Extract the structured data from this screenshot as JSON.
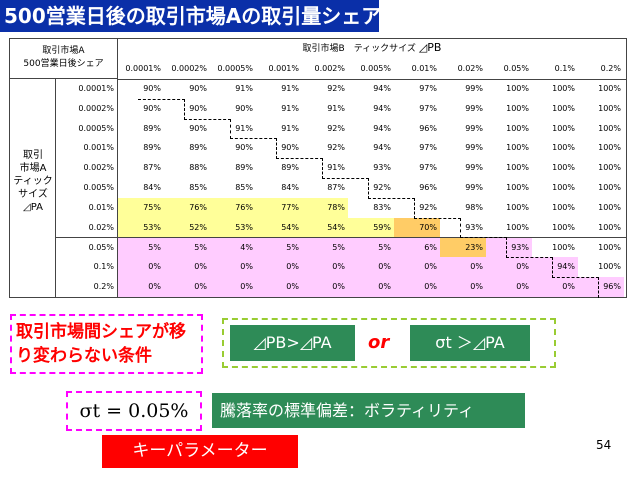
{
  "title": "500営業日後の取引市場Aの取引量シェア",
  "table": {
    "corner_line1": "取引市場A",
    "corner_line2": "500営業日後シェア",
    "top_header": "取引市場B　ティックサイズ",
    "top_header_symbol": "◿PB",
    "row_label_lines": [
      "取引",
      "市場A",
      "ティック",
      "サイズ",
      "◿PA"
    ],
    "columns": [
      "0.0001%",
      "0.0002%",
      "0.0005%",
      "0.001%",
      "0.002%",
      "0.005%",
      "0.01%",
      "0.02%",
      "0.05%",
      "0.1%",
      "0.2%"
    ],
    "rows": [
      {
        "label": "0.0001%",
        "values": [
          "90%",
          "90%",
          "91%",
          "91%",
          "92%",
          "94%",
          "97%",
          "99%",
          "100%",
          "100%",
          "100%"
        ]
      },
      {
        "label": "0.0002%",
        "values": [
          "90%",
          "90%",
          "90%",
          "91%",
          "91%",
          "94%",
          "97%",
          "99%",
          "100%",
          "100%",
          "100%"
        ]
      },
      {
        "label": "0.0005%",
        "values": [
          "89%",
          "90%",
          "91%",
          "91%",
          "92%",
          "94%",
          "96%",
          "99%",
          "100%",
          "100%",
          "100%"
        ]
      },
      {
        "label": "0.001%",
        "values": [
          "89%",
          "89%",
          "90%",
          "90%",
          "92%",
          "94%",
          "97%",
          "99%",
          "100%",
          "100%",
          "100%"
        ]
      },
      {
        "label": "0.002%",
        "values": [
          "87%",
          "88%",
          "89%",
          "89%",
          "91%",
          "93%",
          "97%",
          "99%",
          "100%",
          "100%",
          "100%"
        ]
      },
      {
        "label": "0.005%",
        "values": [
          "84%",
          "85%",
          "85%",
          "84%",
          "87%",
          "92%",
          "96%",
          "99%",
          "100%",
          "100%",
          "100%"
        ]
      },
      {
        "label": "0.01%",
        "values": [
          "75%",
          "76%",
          "76%",
          "77%",
          "78%",
          "83%",
          "92%",
          "98%",
          "100%",
          "100%",
          "100%"
        ]
      },
      {
        "label": "0.02%",
        "values": [
          "53%",
          "52%",
          "53%",
          "54%",
          "54%",
          "59%",
          "70%",
          "93%",
          "100%",
          "100%",
          "100%"
        ]
      },
      {
        "label": "0.05%",
        "values": [
          "5%",
          "5%",
          "4%",
          "5%",
          "5%",
          "5%",
          "6%",
          "23%",
          "93%",
          "100%",
          "100%"
        ]
      },
      {
        "label": "0.1%",
        "values": [
          "0%",
          "0%",
          "0%",
          "0%",
          "0%",
          "0%",
          "0%",
          "0%",
          "0%",
          "94%",
          "100%"
        ]
      },
      {
        "label": "0.2%",
        "values": [
          "0%",
          "0%",
          "0%",
          "0%",
          "0%",
          "0%",
          "0%",
          "0%",
          "0%",
          "0%",
          "96%"
        ]
      }
    ]
  },
  "note_box": "取引市場間シェアが移り変わらない条件",
  "cond1": "◿PB>◿PA",
  "or_text": "or",
  "cond2": "σt ＞◿PA",
  "sigma_formula": "σt = 0.05%",
  "sigma_desc": "騰落率の標準偏差：ボラティリティ",
  "key_param": "キーパラメーター",
  "page_number": "54",
  "colors": {
    "title_bg": "#0a2fa8",
    "yellow": "#ffff99",
    "pink": "#ffccff",
    "orange": "#ffcc66",
    "green": "#2e8b57",
    "red": "#ff0000"
  }
}
